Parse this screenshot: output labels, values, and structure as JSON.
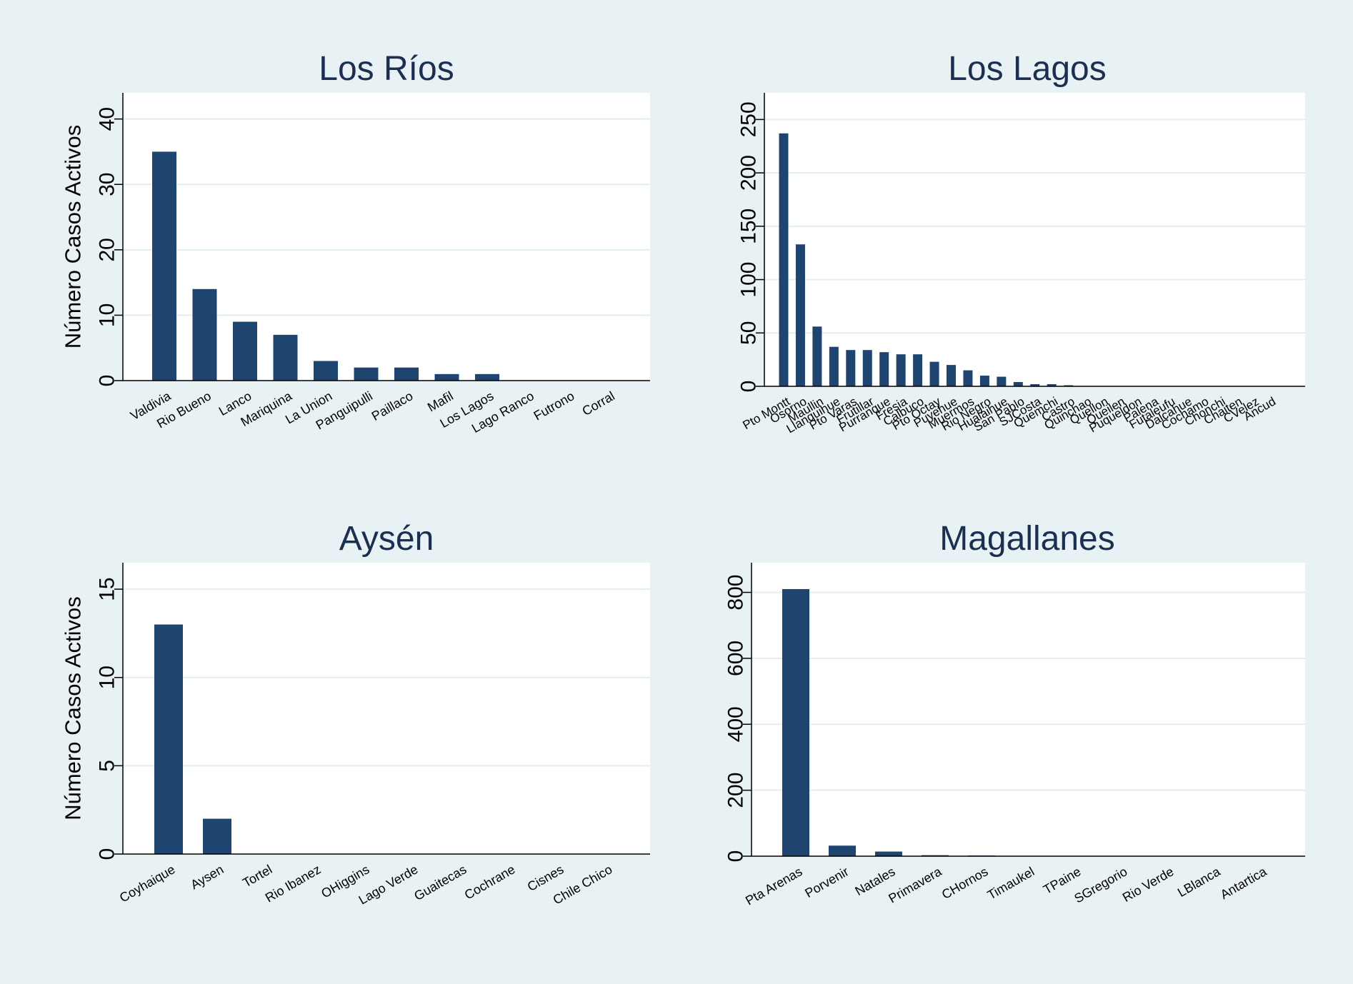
{
  "chart_data": [
    {
      "type": "bar",
      "title": "Los Ríos",
      "ylabel": "Número Casos Activos",
      "ylim": [
        0,
        44
      ],
      "yticks": [
        0,
        10,
        20,
        30,
        40
      ],
      "grid": true,
      "bar_color": "#1e4570",
      "categories": [
        "Valdivia",
        "Rio Bueno",
        "Lanco",
        "Mariquina",
        "La Union",
        "Panguipulli",
        "Paillaco",
        "Mafil",
        "Los Lagos",
        "Lago Ranco",
        "Futrono",
        "Corral"
      ],
      "values": [
        35,
        14,
        9,
        7,
        3,
        2,
        2,
        1,
        1,
        0,
        0,
        0
      ]
    },
    {
      "type": "bar",
      "title": "Los Lagos",
      "ylabel": "",
      "ylim": [
        0,
        275
      ],
      "yticks": [
        0,
        50,
        100,
        150,
        200,
        250
      ],
      "grid": true,
      "bar_color": "#1e4570",
      "categories": [
        "Pto Montt",
        "Osorno",
        "Maullin",
        "Llanquihue",
        "Pto Varas",
        "Frutillar",
        "Purranque",
        "Fresia",
        "Calbuco",
        "Pto Octay",
        "Puyehue",
        "Muermos",
        "Rio Negro",
        "Hualaihue",
        "San Pablo",
        "SJCosta",
        "Quemchi",
        "Castro",
        "Quinchao",
        "Quellon",
        "Queilen",
        "Puqueldon",
        "Palena",
        "Futaleufu",
        "Dalcahue",
        "Cochamo",
        "Chonchi",
        "Chaiten",
        "CVelez",
        "Ancud"
      ],
      "values": [
        237,
        133,
        56,
        37,
        34,
        34,
        32,
        30,
        30,
        23,
        20,
        15,
        10,
        9,
        4,
        2,
        2,
        1,
        0,
        0,
        0,
        0,
        0,
        0,
        0,
        0,
        0,
        0,
        0,
        0
      ]
    },
    {
      "type": "bar",
      "title": "Aysén",
      "ylabel": "Número Casos Activos",
      "ylim": [
        0,
        16.5
      ],
      "yticks": [
        0,
        5,
        10,
        15
      ],
      "grid": true,
      "bar_color": "#1e4570",
      "categories": [
        "Coyhaique",
        "Aysen",
        "Tortel",
        "Rio Ibanez",
        "OHiggins",
        "Lago Verde",
        "Guaitecas",
        "Cochrane",
        "Cisnes",
        "Chile Chico"
      ],
      "values": [
        13,
        2,
        0,
        0,
        0,
        0,
        0,
        0,
        0,
        0
      ]
    },
    {
      "type": "bar",
      "title": "Magallanes",
      "ylabel": "",
      "ylim": [
        0,
        890
      ],
      "yticks": [
        0,
        200,
        400,
        600,
        800
      ],
      "grid": true,
      "bar_color": "#1e4570",
      "categories": [
        "Pta Arenas",
        "Porvenir",
        "Natales",
        "Primavera",
        "CHornos",
        "Timaukel",
        "TPaine",
        "SGregorio",
        "Rio Verde",
        "LBlanca",
        "Antartica"
      ],
      "values": [
        810,
        32,
        14,
        3,
        2,
        0,
        0,
        0,
        0,
        0,
        0
      ]
    }
  ]
}
